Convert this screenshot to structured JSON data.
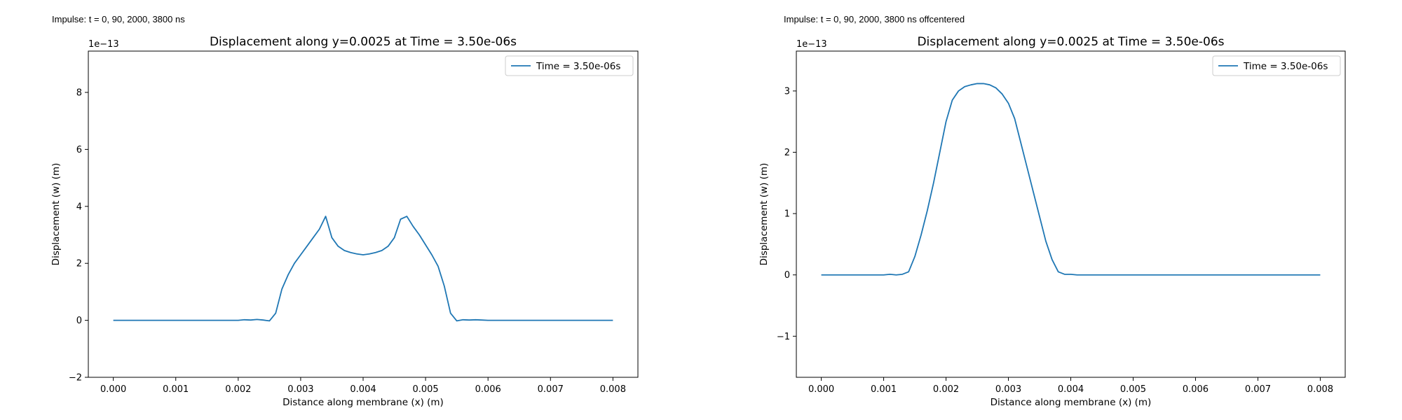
{
  "captions": {
    "left": "Impulse: t = 0, 90, 2000, 3800 ns",
    "right": "Impulse: t = 0, 90, 2000, 3800 ns offcentered"
  },
  "colors": {
    "line": "#1f77b4",
    "axis": "#000000"
  },
  "chart_data": [
    {
      "type": "line",
      "title": "Displacement along y=0.0025 at Time = 3.50e-06s",
      "xlabel": "Distance along membrane (x) (m)",
      "ylabel": "Displacement (w) (m)",
      "y_offset_label": "1e−13",
      "y_scale": 1e-13,
      "xlim": [
        -0.0004,
        0.0084
      ],
      "ylim": [
        -2,
        9.45
      ],
      "xticks": [
        0,
        0.001,
        0.002,
        0.003,
        0.004,
        0.005,
        0.006,
        0.007,
        0.008
      ],
      "xtick_labels": [
        "0.000",
        "0.001",
        "0.002",
        "0.003",
        "0.004",
        "0.005",
        "0.006",
        "0.007",
        "0.008"
      ],
      "yticks": [
        -2,
        0,
        2,
        4,
        6,
        8
      ],
      "ytick_labels": [
        "−2",
        "0",
        "2",
        "4",
        "6",
        "8"
      ],
      "grid": false,
      "legend_position": "upper right",
      "series": [
        {
          "name": "Time = 3.50e-06s",
          "x": [
            0,
            0.0005,
            0.001,
            0.0015,
            0.002,
            0.0021,
            0.0022,
            0.0023,
            0.0024,
            0.0025,
            0.0026,
            0.0027,
            0.0028,
            0.0029,
            0.003,
            0.0031,
            0.0032,
            0.0033,
            0.0034,
            0.0035,
            0.0036,
            0.0037,
            0.0038,
            0.0039,
            0.004,
            0.0041,
            0.0042,
            0.0043,
            0.0044,
            0.0045,
            0.0046,
            0.0047,
            0.0048,
            0.0049,
            0.005,
            0.0051,
            0.0052,
            0.0053,
            0.0054,
            0.0055,
            0.0056,
            0.0057,
            0.0058,
            0.0059,
            0.006,
            0.007,
            0.008
          ],
          "y": [
            0,
            0,
            0,
            0,
            0,
            0.02,
            0.01,
            0.03,
            0.01,
            -0.02,
            0.25,
            1.1,
            1.6,
            2.0,
            2.3,
            2.6,
            2.9,
            3.2,
            3.65,
            2.9,
            2.6,
            2.45,
            2.38,
            2.33,
            2.3,
            2.33,
            2.38,
            2.45,
            2.6,
            2.9,
            3.55,
            3.65,
            3.3,
            3.0,
            2.65,
            2.3,
            1.9,
            1.2,
            0.25,
            -0.02,
            0.02,
            0.01,
            0.02,
            0.01,
            0,
            0,
            0
          ]
        }
      ]
    },
    {
      "type": "line",
      "title": "Displacement along y=0.0025 at Time = 3.50e-06s",
      "xlabel": "Distance along membrane (x) (m)",
      "ylabel": "Displacement (w) (m)",
      "y_offset_label": "1e−13",
      "y_scale": 1e-13,
      "xlim": [
        -0.0004,
        0.0084
      ],
      "ylim": [
        -1.67,
        3.65
      ],
      "xticks": [
        0,
        0.001,
        0.002,
        0.003,
        0.004,
        0.005,
        0.006,
        0.007,
        0.008
      ],
      "xtick_labels": [
        "0.000",
        "0.001",
        "0.002",
        "0.003",
        "0.004",
        "0.005",
        "0.006",
        "0.007",
        "0.008"
      ],
      "yticks": [
        -1,
        0,
        1,
        2,
        3
      ],
      "ytick_labels": [
        "−1",
        "0",
        "1",
        "2",
        "3"
      ],
      "grid": false,
      "legend_position": "upper right",
      "series": [
        {
          "name": "Time = 3.50e-06s",
          "x": [
            0,
            0.0005,
            0.001,
            0.0011,
            0.0012,
            0.0013,
            0.0014,
            0.0015,
            0.0016,
            0.0017,
            0.0018,
            0.0019,
            0.002,
            0.0021,
            0.0022,
            0.0023,
            0.0024,
            0.0025,
            0.0026,
            0.0027,
            0.0028,
            0.0029,
            0.003,
            0.0031,
            0.0032,
            0.0033,
            0.0034,
            0.0035,
            0.0036,
            0.0037,
            0.0038,
            0.0039,
            0.004,
            0.0041,
            0.0042,
            0.005,
            0.006,
            0.007,
            0.008
          ],
          "y": [
            0,
            0,
            0,
            0.01,
            0,
            0.01,
            0.05,
            0.3,
            0.65,
            1.05,
            1.5,
            2.0,
            2.5,
            2.85,
            3.0,
            3.07,
            3.1,
            3.12,
            3.12,
            3.1,
            3.05,
            2.95,
            2.8,
            2.55,
            2.15,
            1.75,
            1.35,
            0.95,
            0.55,
            0.25,
            0.05,
            0.01,
            0.01,
            0,
            0,
            0,
            0,
            0,
            0
          ]
        }
      ]
    }
  ]
}
